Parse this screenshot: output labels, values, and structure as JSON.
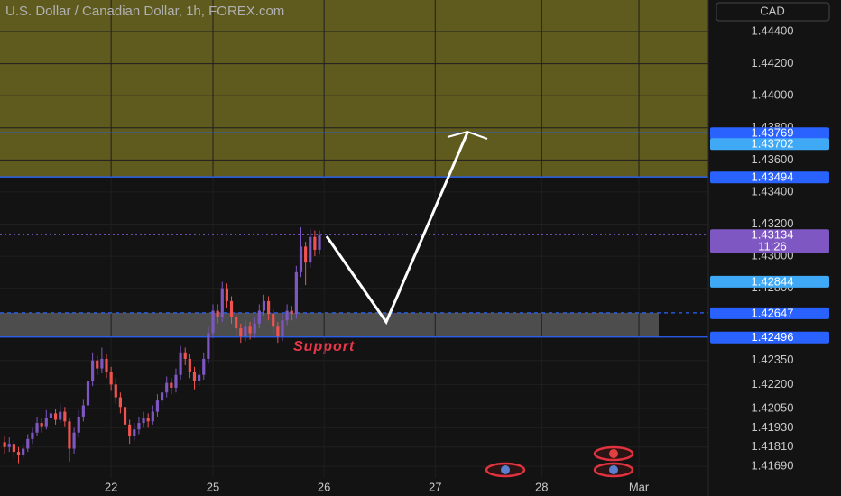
{
  "chart_data": {
    "type": "candlestick",
    "title": "U.S. Dollar / Canadian Dollar, 1h, FOREX.com",
    "currency": "CAD",
    "x": [
      1,
      2,
      3,
      4,
      5,
      6,
      7,
      8,
      9,
      10,
      11,
      12,
      13,
      14,
      15,
      16,
      17,
      18,
      19,
      20,
      21,
      22,
      23,
      24,
      25,
      26,
      27,
      28,
      29,
      30,
      31,
      32,
      33,
      34,
      35,
      36,
      37,
      38,
      39,
      40,
      41,
      42,
      43,
      44,
      45,
      46,
      47,
      48,
      49,
      50,
      51,
      52,
      53,
      54,
      55,
      56,
      57,
      58,
      59,
      60,
      61,
      62,
      63,
      64,
      65,
      66,
      67,
      68,
      69
    ],
    "open": [
      1.4184,
      1.4181,
      1.4183,
      1.4178,
      1.4176,
      1.418,
      1.4186,
      1.419,
      1.4196,
      1.4194,
      1.4199,
      1.4202,
      1.4198,
      1.4203,
      1.4197,
      1.418,
      1.419,
      1.42,
      1.4207,
      1.4222,
      1.4235,
      1.423,
      1.4236,
      1.4228,
      1.422,
      1.4212,
      1.4206,
      1.4195,
      1.4188,
      1.4192,
      1.4196,
      1.4199,
      1.4197,
      1.4203,
      1.421,
      1.4215,
      1.4221,
      1.4218,
      1.4226,
      1.424,
      1.4236,
      1.4228,
      1.4222,
      1.4226,
      1.4236,
      1.4252,
      1.4266,
      1.4262,
      1.428,
      1.4272,
      1.4262,
      1.4255,
      1.425,
      1.4256,
      1.4252,
      1.4258,
      1.4266,
      1.4272,
      1.4264,
      1.4256,
      1.425,
      1.426,
      1.4266,
      1.4264,
      1.429,
      1.4306,
      1.4296,
      1.4312,
      1.4304
    ],
    "high": [
      1.4188,
      1.4187,
      1.4185,
      1.4181,
      1.4183,
      1.4189,
      1.4193,
      1.42,
      1.4199,
      1.4204,
      1.4206,
      1.4205,
      1.4208,
      1.4206,
      1.4199,
      1.4193,
      1.4204,
      1.4211,
      1.4226,
      1.424,
      1.4238,
      1.4243,
      1.4239,
      1.4231,
      1.4224,
      1.4215,
      1.4209,
      1.4198,
      1.4196,
      1.42,
      1.4203,
      1.4202,
      1.4207,
      1.4214,
      1.4219,
      1.4225,
      1.4224,
      1.423,
      1.4244,
      1.4243,
      1.4239,
      1.4231,
      1.423,
      1.424,
      1.4256,
      1.427,
      1.427,
      1.4284,
      1.4283,
      1.4275,
      1.4265,
      1.4258,
      1.426,
      1.4259,
      1.4262,
      1.427,
      1.4276,
      1.4275,
      1.4267,
      1.4259,
      1.4264,
      1.427,
      1.4269,
      1.4294,
      1.4318,
      1.4309,
      1.4317,
      1.4316,
      1.4316
    ],
    "low": [
      1.4177,
      1.4178,
      1.4174,
      1.4171,
      1.4174,
      1.4178,
      1.4183,
      1.4188,
      1.419,
      1.4192,
      1.4196,
      1.4195,
      1.4196,
      1.4194,
      1.4172,
      1.4177,
      1.4187,
      1.4197,
      1.4204,
      1.4219,
      1.4226,
      1.4227,
      1.4224,
      1.4216,
      1.4208,
      1.4202,
      1.419,
      1.4183,
      1.4185,
      1.4189,
      1.4193,
      1.4193,
      1.4195,
      1.42,
      1.4207,
      1.4212,
      1.4214,
      1.4215,
      1.4223,
      1.4232,
      1.4224,
      1.4217,
      1.4219,
      1.4223,
      1.4233,
      1.4249,
      1.4258,
      1.4259,
      1.4268,
      1.4258,
      1.425,
      1.4246,
      1.4247,
      1.4248,
      1.4249,
      1.4255,
      1.4263,
      1.426,
      1.4252,
      1.4246,
      1.4247,
      1.4257,
      1.426,
      1.4261,
      1.4287,
      1.4282,
      1.4293,
      1.43,
      1.4301
    ],
    "close": [
      1.4181,
      1.4183,
      1.4178,
      1.4176,
      1.418,
      1.4186,
      1.419,
      1.4196,
      1.4194,
      1.4199,
      1.4202,
      1.4198,
      1.4203,
      1.4197,
      1.418,
      1.419,
      1.42,
      1.4207,
      1.4222,
      1.4235,
      1.423,
      1.4236,
      1.4228,
      1.422,
      1.4212,
      1.4206,
      1.4195,
      1.4188,
      1.4192,
      1.4196,
      1.4199,
      1.4197,
      1.4203,
      1.421,
      1.4215,
      1.4221,
      1.4218,
      1.4226,
      1.424,
      1.4236,
      1.4228,
      1.4222,
      1.4226,
      1.4236,
      1.4252,
      1.4266,
      1.4262,
      1.428,
      1.4272,
      1.4262,
      1.4255,
      1.425,
      1.4256,
      1.4252,
      1.4258,
      1.4266,
      1.4272,
      1.4264,
      1.4256,
      1.425,
      1.426,
      1.4266,
      1.4264,
      1.429,
      1.4306,
      1.4296,
      1.4312,
      1.4304,
      1.4313
    ],
    "up_color": "#7e57c2",
    "down_color": "#ef5350",
    "xlim": [
      0,
      153
    ],
    "xticks": [
      {
        "value": 24,
        "label": "22"
      },
      {
        "value": 46,
        "label": "25"
      },
      {
        "value": 70,
        "label": "26"
      },
      {
        "value": 94,
        "label": "27"
      },
      {
        "value": 117,
        "label": "28"
      },
      {
        "value": 138,
        "label": "Mar"
      }
    ],
    "ylim": [
      1.41505,
      1.44597
    ],
    "yticks": [
      {
        "value": 1.444,
        "label": "1.44400"
      },
      {
        "value": 1.442,
        "label": "1.44200"
      },
      {
        "value": 1.44,
        "label": "1.44000"
      },
      {
        "value": 1.438,
        "label": "1.43800"
      },
      {
        "value": 1.436,
        "label": "1.43600"
      },
      {
        "value": 1.434,
        "label": "1.43400"
      },
      {
        "value": 1.432,
        "label": "1.43200"
      },
      {
        "value": 1.43,
        "label": "1.43000"
      },
      {
        "value": 1.428,
        "label": "1.42800"
      },
      {
        "value": 1.4235,
        "label": "1.42350"
      },
      {
        "value": 1.422,
        "label": "1.42200"
      },
      {
        "value": 1.4205,
        "label": "1.42050"
      },
      {
        "value": 1.4193,
        "label": "1.41930"
      },
      {
        "value": 1.4181,
        "label": "1.41810"
      },
      {
        "value": 1.4169,
        "label": "1.41690"
      }
    ],
    "grid": true,
    "zones": [
      {
        "from": 1.43494,
        "color": "#5f5b1f"
      },
      {
        "from": 1.42496,
        "to": 1.42647,
        "color": "#4d4d4d",
        "label": "Support"
      }
    ],
    "levels": [
      {
        "value": 1.43769,
        "color": "#2962ff",
        "line": "solid"
      },
      {
        "value": 1.43702,
        "color": "#3fa9f5"
      },
      {
        "value": 1.43494,
        "color": "#2962ff",
        "line": "solid"
      },
      {
        "value": 1.43134,
        "color": "#7e57c2",
        "line": "dotted",
        "countdown": "11:26"
      },
      {
        "value": 1.42844,
        "color": "#3fa9f5"
      },
      {
        "value": 1.42647,
        "color": "#2962ff",
        "line": "dashed"
      },
      {
        "value": 1.42496,
        "color": "#2962ff",
        "line": "solid"
      }
    ]
  }
}
